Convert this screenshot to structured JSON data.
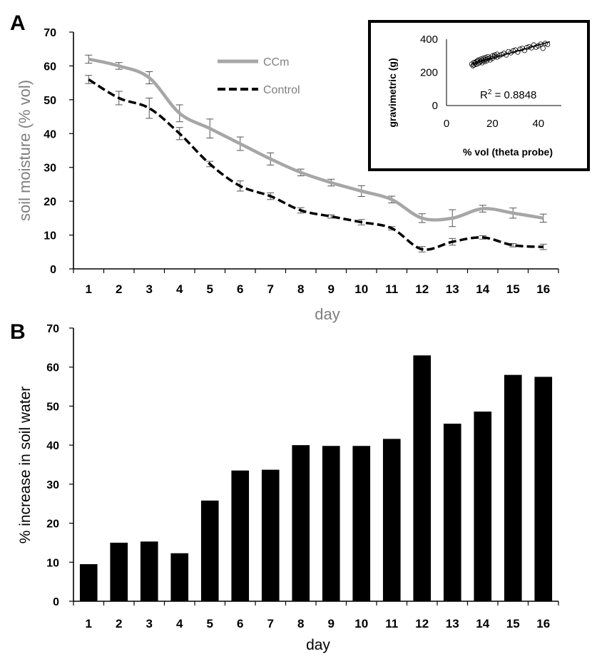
{
  "panel_a": {
    "letter": "A",
    "ylabel": "soil moisture (% vol)",
    "xlabel": "day",
    "yticks": [
      "0",
      "10",
      "20",
      "30",
      "40",
      "50",
      "60",
      "70"
    ],
    "legend": {
      "series1": "CCm",
      "series2": "Control"
    },
    "inset": {
      "ylabel": "gravimetric  (g)",
      "xlabel": "% vol (theta probe)",
      "yticks": [
        "0",
        "200",
        "400"
      ],
      "xticks": [
        "0",
        "20",
        "40"
      ],
      "r2_prefix": "R",
      "r2_exp": "2",
      "r2_value": " = 0.8848"
    }
  },
  "panel_b": {
    "letter": "B",
    "ylabel": "% increase in soil water",
    "xlabel": "day",
    "yticks": [
      "0",
      "10",
      "20",
      "30",
      "40",
      "50",
      "60",
      "70"
    ]
  },
  "chart_data": [
    {
      "type": "line",
      "x": [
        1,
        2,
        3,
        4,
        5,
        6,
        7,
        8,
        9,
        10,
        11,
        12,
        13,
        14,
        15,
        16
      ],
      "categories": [
        "1",
        "2",
        "3",
        "4",
        "5",
        "6",
        "7",
        "8",
        "9",
        "10",
        "11",
        "12",
        "13",
        "14",
        "15",
        "16"
      ],
      "series": [
        {
          "name": "CCm",
          "color": "#a6a6a6",
          "style": "solid",
          "values": [
            62,
            60,
            56.5,
            46,
            41.5,
            37,
            32.5,
            28.5,
            25.5,
            23,
            20.5,
            15,
            15,
            17.8,
            16.5,
            15
          ],
          "error": [
            1.2,
            1,
            1.8,
            2.5,
            2.8,
            2,
            1.8,
            1,
            1,
            1.6,
            1,
            1.3,
            2.5,
            1,
            1.5,
            1.2
          ]
        },
        {
          "name": "Control",
          "color": "#000000",
          "style": "dashed",
          "values": [
            56,
            50.5,
            47.5,
            40,
            31,
            24.5,
            21.5,
            17.3,
            15.5,
            13.8,
            12,
            5.8,
            8,
            9.3,
            7,
            6.5
          ],
          "error": [
            1.2,
            2,
            3,
            1.8,
            0.8,
            1.5,
            1,
            0.8,
            0.5,
            0.8,
            0.5,
            0.8,
            1,
            0.5,
            0.5,
            0.8
          ]
        }
      ],
      "ylim": [
        0,
        70
      ],
      "xlabel": "day",
      "ylabel": "soil moisture (% vol)",
      "legend_position": "top-center"
    },
    {
      "type": "scatter",
      "xlabel": "% vol (theta probe)",
      "ylabel": "gravimetric  (g)",
      "xlim": [
        0,
        50
      ],
      "ylim": [
        0,
        400
      ],
      "annotation": "R² = 0.8848",
      "points_x": [
        11,
        11.5,
        12,
        12,
        12.5,
        13,
        13,
        13.5,
        14,
        14,
        14.5,
        15,
        15,
        15.5,
        16,
        16,
        16.5,
        17,
        17,
        17.5,
        18,
        18,
        19,
        19,
        20,
        20,
        21,
        21,
        22,
        22,
        23,
        24,
        25,
        26,
        27,
        28,
        29,
        30,
        31,
        32,
        33,
        34,
        35,
        36,
        37,
        38,
        39,
        40,
        41,
        42,
        43,
        44
      ],
      "points_y": [
        250,
        240,
        260,
        245,
        255,
        265,
        248,
        270,
        255,
        275,
        262,
        268,
        280,
        258,
        272,
        285,
        265,
        278,
        290,
        270,
        282,
        295,
        288,
        275,
        300,
        285,
        295,
        305,
        292,
        310,
        300,
        308,
        315,
        305,
        325,
        318,
        330,
        335,
        322,
        340,
        345,
        332,
        350,
        355,
        348,
        365,
        352,
        360,
        370,
        345,
        375,
        368
      ],
      "trendline": {
        "x": [
          11,
          45
        ],
        "y": [
          250,
          385
        ]
      }
    },
    {
      "type": "bar",
      "categories": [
        "1",
        "2",
        "3",
        "4",
        "5",
        "6",
        "7",
        "8",
        "9",
        "10",
        "11",
        "12",
        "13",
        "14",
        "15",
        "16"
      ],
      "values": [
        9.5,
        15,
        15.3,
        12.3,
        25.8,
        33.5,
        33.7,
        40,
        39.8,
        39.8,
        41.6,
        63,
        45.5,
        48.6,
        58,
        57.5
      ],
      "ylim": [
        0,
        70
      ],
      "xlabel": "day",
      "ylabel": "% increase in soil water",
      "color": "#000000"
    }
  ]
}
